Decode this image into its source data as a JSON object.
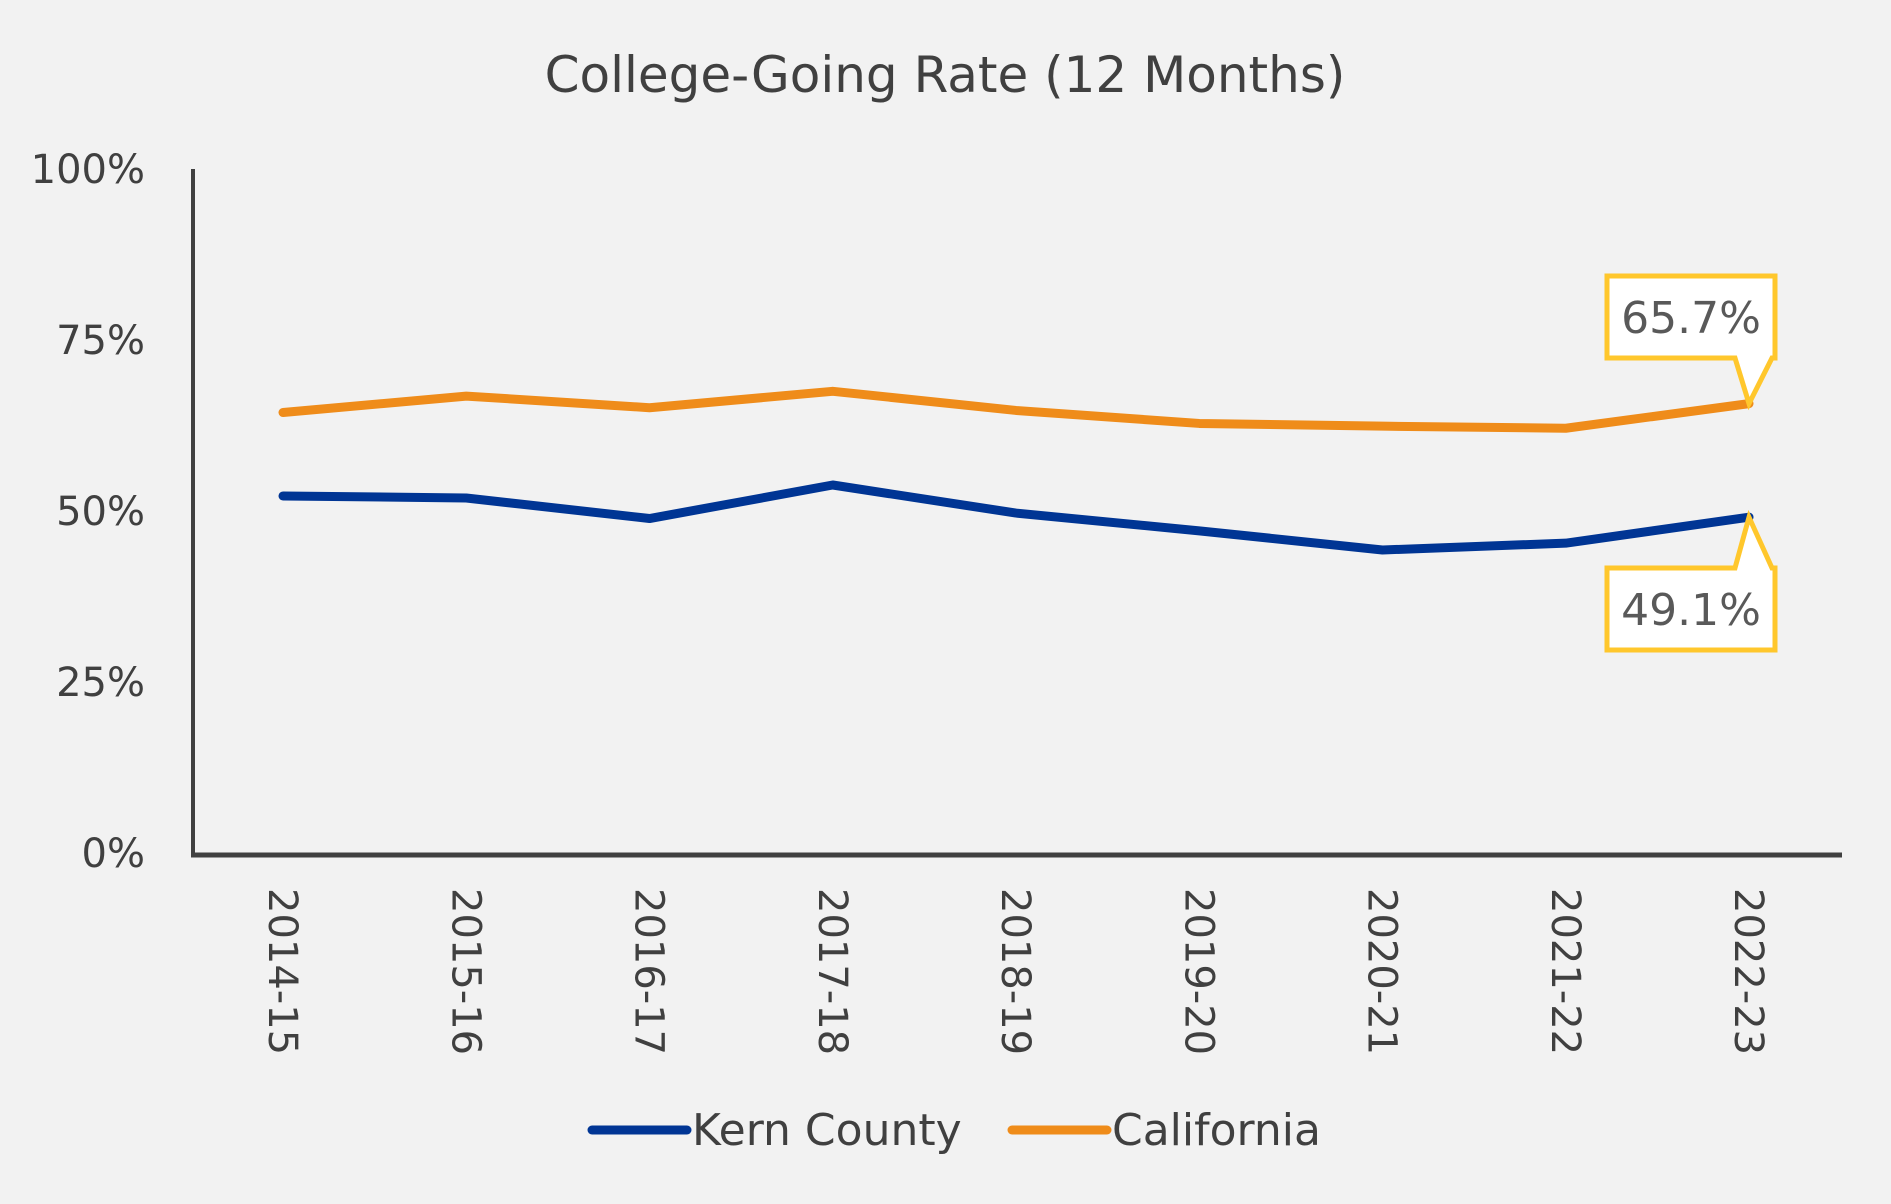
{
  "chart_data": {
    "type": "line",
    "title": "College-Going Rate (12 Months)",
    "xlabel": "",
    "ylabel": "",
    "categories": [
      "2014-15",
      "2015-16",
      "2016-17",
      "2017-18",
      "2018-19",
      "2019-20",
      "2020-21",
      "2021-22",
      "2022-23"
    ],
    "ylim": [
      0,
      100
    ],
    "yticks": [
      "0%",
      "25%",
      "50%",
      "75%",
      "100%"
    ],
    "grid": false,
    "legend": "bottom",
    "series": [
      {
        "name": "Kern County",
        "color": "#003594",
        "values": [
          52.2,
          51.9,
          48.9,
          53.8,
          49.7,
          47.1,
          44.3,
          45.3,
          49.1
        ]
      },
      {
        "name": "California",
        "color": "#ef8c1a",
        "values": [
          64.4,
          66.8,
          65.1,
          67.5,
          64.7,
          62.8,
          62.4,
          62.1,
          65.7
        ]
      }
    ],
    "annotations": [
      {
        "series": "California",
        "category": "2022-23",
        "text": "65.7%",
        "border": "#ffc72c"
      },
      {
        "series": "Kern County",
        "category": "2022-23",
        "text": "49.1%",
        "border": "#ffc72c"
      }
    ]
  }
}
